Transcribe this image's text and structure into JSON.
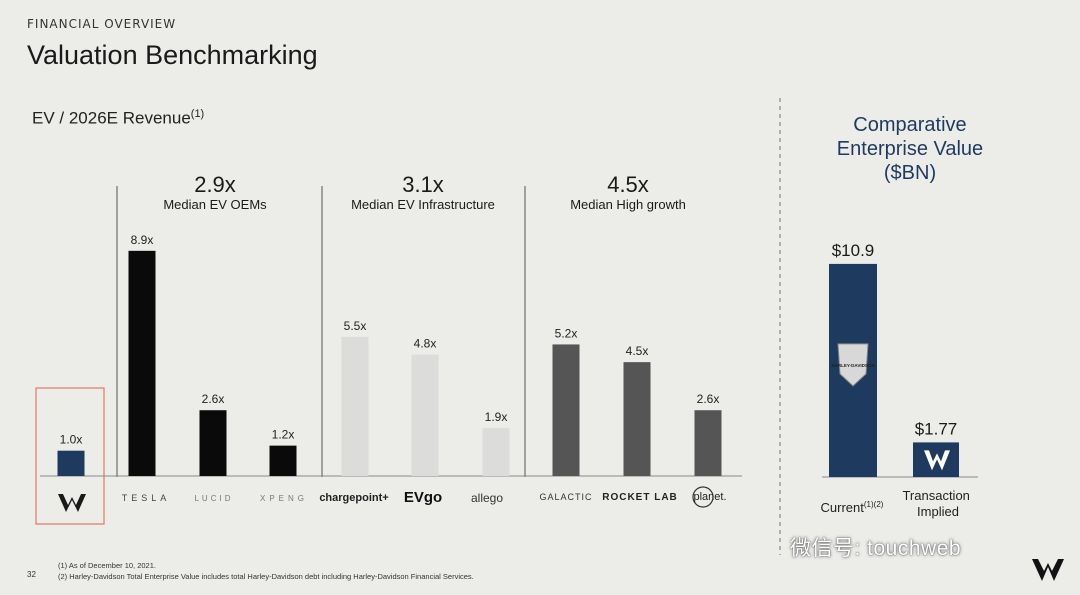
{
  "header": {
    "eyebrow": "FINANCIAL OVERVIEW",
    "title": "Valuation Benchmarking",
    "subtitle": "EV / 2026E Revenue",
    "subtitle_sup": "(1)"
  },
  "groups": [
    {
      "value": "2.9x",
      "label": "Median EV OEMs"
    },
    {
      "value": "3.1x",
      "label": "Median EV Infrastructure"
    },
    {
      "value": "4.5x",
      "label": "Median High growth"
    }
  ],
  "chart_data": [
    {
      "type": "bar",
      "title": "EV / 2026E Revenue",
      "categories": [
        "LiveWire",
        "TESLA",
        "LUCID",
        "XPENG",
        "chargepoint+",
        "EVgo",
        "allego",
        "GALACTIC",
        "ROCKET LAB",
        "planet."
      ],
      "values": [
        1.0,
        8.9,
        2.6,
        1.2,
        5.5,
        4.8,
        1.9,
        5.2,
        4.5,
        2.6
      ],
      "data_labels": [
        "1.0x",
        "8.9x",
        "2.6x",
        "1.2x",
        "5.5x",
        "4.8x",
        "1.9x",
        "5.2x",
        "4.5x",
        "2.6x"
      ],
      "colors": [
        "#1f3a5f",
        "#0a0a0a",
        "#0a0a0a",
        "#0a0a0a",
        "#dcdcda",
        "#dcdcda",
        "#dcdcda",
        "#555555",
        "#555555",
        "#555555"
      ],
      "ylim": [
        0,
        9.5
      ],
      "xlabel": "",
      "ylabel": ""
    },
    {
      "type": "bar",
      "title": "Comparative Enterprise Value ($BN)",
      "categories": [
        "Current",
        "Transaction Implied"
      ],
      "category_sup": [
        "(1)(2)",
        ""
      ],
      "values": [
        10.9,
        1.77
      ],
      "data_labels": [
        "$10.9",
        "$1.77"
      ],
      "colors": [
        "#1f3a5f",
        "#1f3a5f"
      ],
      "ylim": [
        0,
        11.5
      ],
      "bar_logo_text": "HARLEY-DAVIDSON"
    }
  ],
  "right_title": [
    "Comparative",
    "Enterprise Value",
    "($BN)"
  ],
  "footnotes": {
    "page_number": "32",
    "notes": [
      "(1)  As of December 10, 2021.",
      "(2)  Harley-Davidson Total Enterprise Value includes total Harley-Davidson debt including Harley-Davidson Financial Services."
    ]
  },
  "watermark": "微信号: touchweb",
  "colors": {
    "accent": "#1f3a5f",
    "highlight_box": "#e07a5f",
    "divider": "#555555",
    "right_divider": "#999999"
  }
}
